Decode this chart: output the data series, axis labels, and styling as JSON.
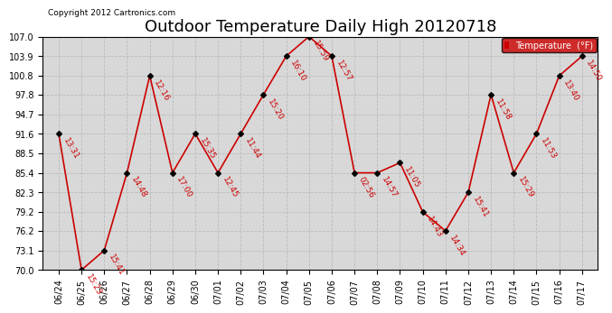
{
  "title": "Outdoor Temperature Daily High 20120718",
  "copyright": "Copyright 2012 Cartronics.com",
  "legend_label": "Temperature  (°F)",
  "dates": [
    "06/24",
    "06/25",
    "06/26",
    "06/27",
    "06/28",
    "06/29",
    "06/30",
    "07/01",
    "07/02",
    "07/03",
    "07/04",
    "07/05",
    "07/06",
    "07/07",
    "07/08",
    "07/09",
    "07/10",
    "07/11",
    "07/12",
    "07/13",
    "07/14",
    "07/15",
    "07/16",
    "07/17"
  ],
  "temperatures": [
    91.6,
    70.0,
    73.1,
    85.4,
    100.8,
    85.4,
    91.6,
    85.4,
    91.6,
    97.8,
    103.9,
    107.0,
    103.9,
    85.4,
    85.4,
    87.0,
    79.2,
    76.2,
    82.3,
    97.8,
    85.4,
    91.6,
    100.8,
    103.9
  ],
  "time_labels": [
    "13:31",
    "15:23",
    "15:41",
    "14:48",
    "12:16",
    "17:00",
    "15:35",
    "12:45",
    "11:44",
    "15:20",
    "16:10",
    "15:59",
    "12:57",
    "02:56",
    "14:57",
    "11:05",
    "14:43",
    "14:34",
    "15:41",
    "11:58",
    "15:29",
    "11:53",
    "13:40",
    "14:50"
  ],
  "line_color": "#cc0000",
  "marker_color": "#000000",
  "grid_color": "#bbbbbb",
  "bg_color": "#ffffff",
  "plot_bg_color": "#d8d8d8",
  "legend_bg": "#cc0000",
  "legend_text_color": "#ffffff",
  "title_fontsize": 13,
  "label_fontsize": 6.5,
  "tick_fontsize": 7,
  "ylim": [
    70.0,
    107.0
  ],
  "yticks": [
    70.0,
    73.1,
    76.2,
    79.2,
    82.3,
    85.4,
    88.5,
    91.6,
    94.7,
    97.8,
    100.8,
    103.9,
    107.0
  ]
}
